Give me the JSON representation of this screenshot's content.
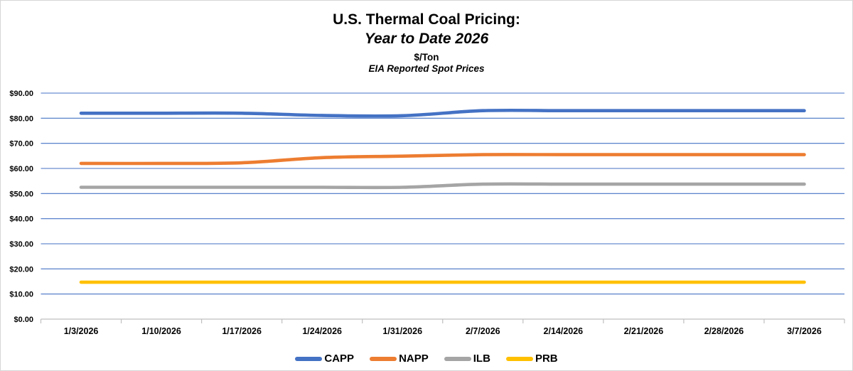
{
  "header": {
    "title": "U.S. Thermal Coal Pricing:",
    "subtitle": "Year to Date 2026",
    "unit": "$/Ton",
    "source_note": "EIA Reported Spot Prices"
  },
  "chart_data": {
    "type": "line",
    "title": "U.S. Thermal Coal Pricing: Year to Date 2026",
    "ylabel": "$/Ton",
    "categories": [
      "1/3/2026",
      "1/10/2026",
      "1/17/2026",
      "1/24/2026",
      "1/31/2026",
      "2/7/2026",
      "2/14/2026",
      "2/21/2026",
      "2/28/2026",
      "3/7/2026"
    ],
    "series": [
      {
        "name": "CAPP",
        "color": "#4472C4",
        "values": [
          82.0,
          82.0,
          82.0,
          81.1,
          81.0,
          83.0,
          83.0,
          83.0,
          83.0,
          83.0
        ]
      },
      {
        "name": "NAPP",
        "color": "#ED7D31",
        "values": [
          62.0,
          62.0,
          62.25,
          64.3,
          64.9,
          65.5,
          65.5,
          65.5,
          65.5,
          65.5
        ]
      },
      {
        "name": "ILB",
        "color": "#A5A5A5",
        "values": [
          52.5,
          52.5,
          52.5,
          52.5,
          52.5,
          53.75,
          53.75,
          53.75,
          53.75,
          53.75
        ]
      },
      {
        "name": "PRB",
        "color": "#FFC000",
        "values": [
          14.7,
          14.7,
          14.7,
          14.7,
          14.7,
          14.7,
          14.7,
          14.7,
          14.7,
          14.7
        ]
      }
    ],
    "ylim": [
      0,
      90
    ],
    "ytick_step": 10,
    "ytick_labels": [
      "$0.00",
      "$10.00",
      "$20.00",
      "$30.00",
      "$40.00",
      "$50.00",
      "$60.00",
      "$70.00",
      "$80.00",
      "$90.00"
    ],
    "grid": true,
    "gridline_color": "#4472C4",
    "axis_line_color": "#BFBFBF",
    "text_color": "#000000",
    "legend_position": "bottom"
  }
}
